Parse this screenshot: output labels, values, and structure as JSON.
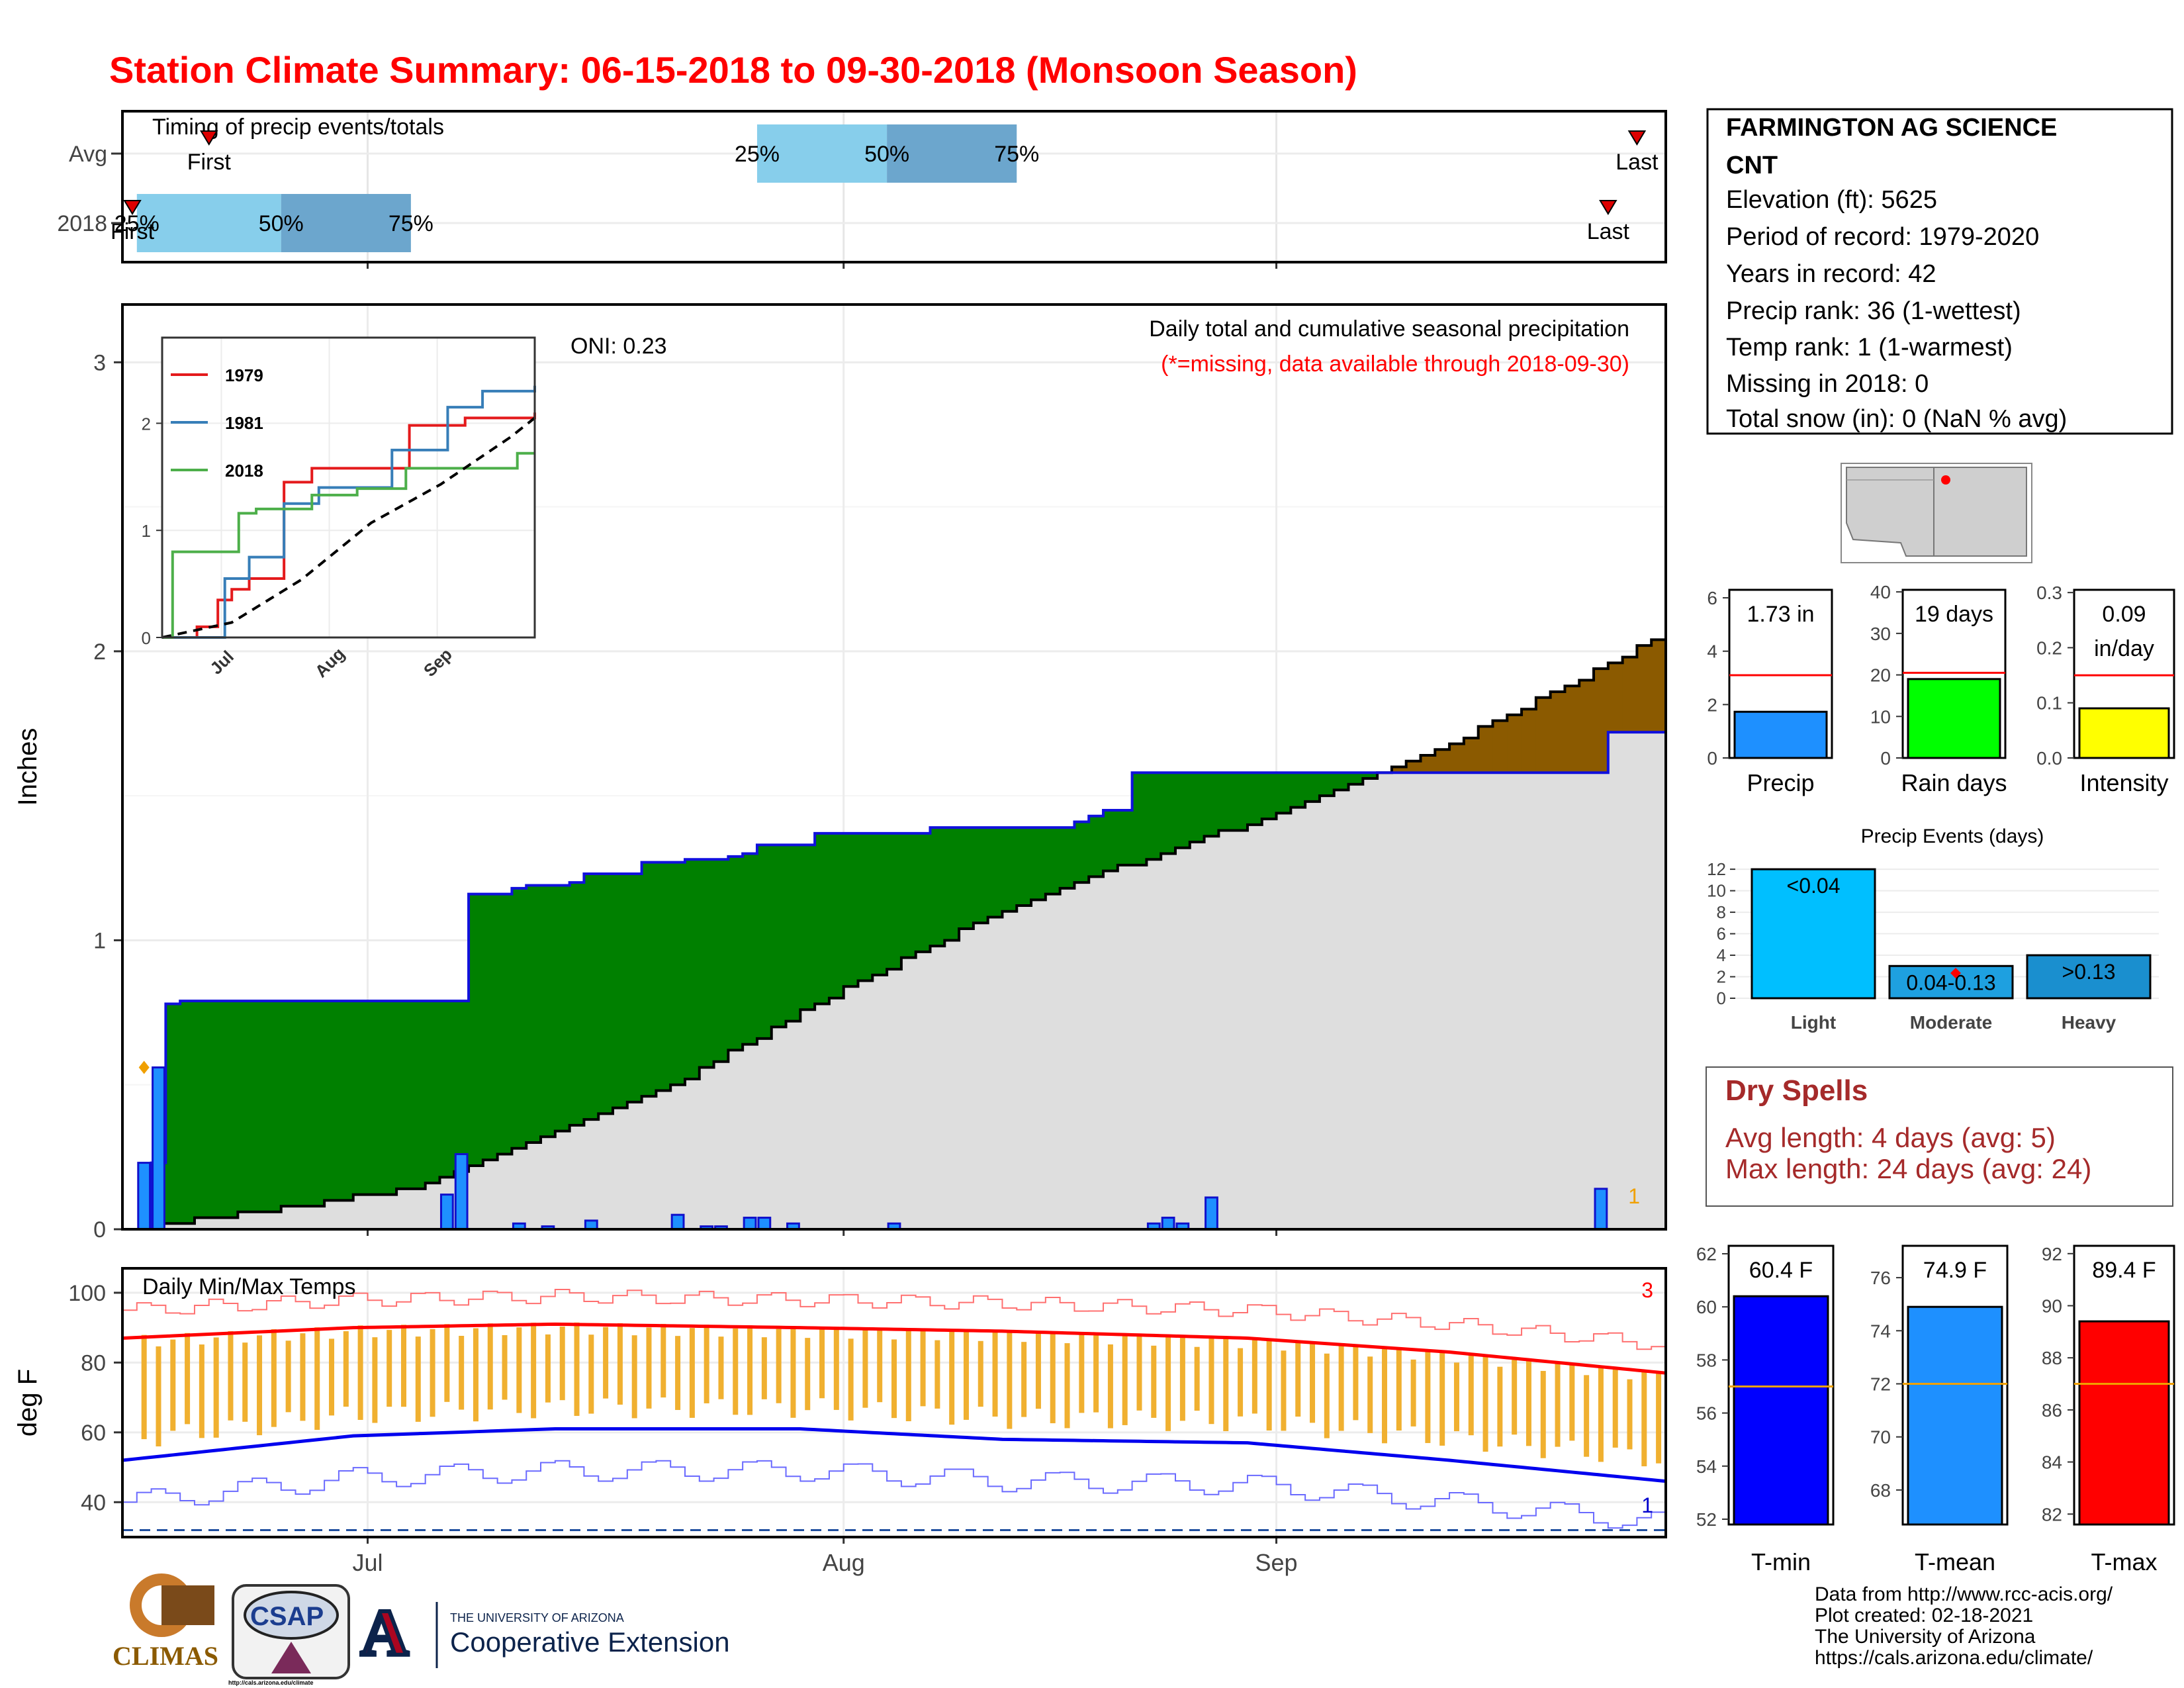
{
  "title": "Station Climate Summary: 06-15-2018 to 09-30-2018 (Monsoon Season)",
  "colors": {
    "title": "#ff0000",
    "deficit": "#008000",
    "surplus": "#8b5a00",
    "bars": "#1e90ff"
  },
  "timing": {
    "title": "Timing of precip events/totals",
    "rows": [
      "Avg",
      "2018"
    ],
    "avg": {
      "p25": "25%",
      "p50": "50%",
      "p75": "75%",
      "first": "First",
      "last": "Last"
    },
    "y2018": {
      "p25": "25%",
      "p50": "50%",
      "p75": "75%",
      "first": "First",
      "last": "Last"
    }
  },
  "station": {
    "name_line1": "FARMINGTON AG SCIENCE",
    "name_line2": "CNT",
    "lines": [
      "Elevation (ft): 5625",
      "Period of record: 1979-2020",
      "Years in record: 42",
      "Precip rank: 36 (1-wettest)",
      "Temp rank: 1 (1-warmest)",
      "Missing in 2018: 0",
      "Total snow (in): 0 (NaN % avg)"
    ]
  },
  "main": {
    "ylabel": "Inches",
    "yticks": [
      "0",
      "1",
      "2",
      "3"
    ],
    "xticks": [
      "Jul",
      "Aug",
      "Sep"
    ],
    "note1": "Daily total and cumulative seasonal precipitation",
    "note2": "(*=missing, data available through 2018-09-30)",
    "oni": "ONI: 0.23",
    "corner_label": "1"
  },
  "inset": {
    "legend": [
      "1979",
      "1981",
      "2018"
    ],
    "yticks": [
      "0",
      "1",
      "2"
    ],
    "xticks": [
      "Jul",
      "Aug",
      "Sep"
    ]
  },
  "temps": {
    "title": "Daily Min/Max Temps",
    "ylabel": "deg F",
    "yticks": [
      "40",
      "60",
      "80",
      "100"
    ],
    "xticks": [
      "Jul",
      "Aug",
      "Sep"
    ],
    "count_top": "3",
    "count_bottom": "1"
  },
  "small_bars": {
    "precip": {
      "label": "Precip",
      "value_label": "1.73 in",
      "yticks": [
        "0",
        "2",
        "4",
        "6"
      ]
    },
    "raindays": {
      "label": "Rain days",
      "value_label": "19 days",
      "yticks": [
        "0",
        "10",
        "20",
        "30",
        "40"
      ]
    },
    "intensity": {
      "label": "Intensity",
      "value_label1": "0.09",
      "value_label2": "in/day",
      "yticks": [
        "0.0",
        "0.1",
        "0.2",
        "0.3"
      ]
    }
  },
  "events": {
    "title": "Precip Events (days)",
    "yticks": [
      "0",
      "2",
      "4",
      "6",
      "8",
      "10",
      "12"
    ],
    "categories": [
      "Light",
      "Moderate",
      "Heavy"
    ],
    "bar_labels": [
      "<0.04",
      "0.04-0.13",
      ">0.13"
    ]
  },
  "dry": {
    "title": "Dry Spells",
    "line1": "Avg length: 4 days (avg: 5)",
    "line2": "Max length: 24 days (avg: 24)"
  },
  "temp_bars": {
    "tmin": {
      "label": "T-min",
      "value_label": "60.4 F",
      "yticks": [
        "52",
        "54",
        "56",
        "58",
        "60",
        "62"
      ]
    },
    "tmean": {
      "label": "T-mean",
      "value_label": "74.9 F",
      "yticks": [
        "68",
        "70",
        "72",
        "74",
        "76"
      ]
    },
    "tmax": {
      "label": "T-max",
      "value_label": "89.4 F",
      "yticks": [
        "82",
        "84",
        "86",
        "88",
        "90",
        "92"
      ]
    }
  },
  "footer": {
    "lines": [
      "Data from http://www.rcc-acis.org/",
      "Plot created: 02-18-2021",
      "The University of Arizona",
      "https://cals.arizona.edu/climate/"
    ],
    "climas": "CLIMAS",
    "csap": "CSAP",
    "csap_url": "http://cals.arizona.edu/climate",
    "ua_line1": "THE UNIVERSITY OF ARIZONA",
    "ua_line2": "Cooperative Extension"
  },
  "chart_data": [
    {
      "type": "bar",
      "title": "Timing of precip events/totals",
      "categories": [
        "Avg",
        "2018"
      ],
      "series": [
        {
          "name": "25%",
          "values": [
            "2018-07-29",
            "2018-06-16"
          ]
        },
        {
          "name": "50%",
          "values": [
            "2018-08-07",
            "2018-06-26"
          ]
        },
        {
          "name": "75%",
          "values": [
            "2018-08-16",
            "2018-07-05"
          ]
        },
        {
          "name": "First",
          "values": [
            "2018-06-21",
            "2018-06-15"
          ]
        },
        {
          "name": "Last",
          "values": [
            "2018-09-28",
            "2018-09-26"
          ]
        }
      ]
    },
    {
      "type": "area",
      "title": "Daily total and cumulative seasonal precipitation",
      "ylabel": "Inches",
      "ylim": [
        0,
        3.2
      ],
      "x_range": [
        "2018-06-15",
        "2018-09-30"
      ],
      "series": [
        {
          "name": "2018",
          "x": [
            "2018-06-15",
            "2018-06-17",
            "2018-06-18",
            "2018-06-19",
            "2018-07-07",
            "2018-07-08",
            "2018-07-09",
            "2018-07-12",
            "2018-07-13",
            "2018-07-16",
            "2018-07-17",
            "2018-07-20",
            "2018-07-21",
            "2018-07-24",
            "2018-07-27",
            "2018-07-28",
            "2018-07-29",
            "2018-07-30",
            "2018-08-02",
            "2018-08-03",
            "2018-08-04",
            "2018-08-10",
            "2018-08-11",
            "2018-08-15",
            "2018-08-16",
            "2018-08-20",
            "2018-08-21",
            "2018-08-22",
            "2018-08-23",
            "2018-08-24",
            "2018-08-25",
            "2018-09-25",
            "2018-09-26",
            "2018-09-30"
          ],
          "values": [
            0.0,
            0.23,
            0.78,
            0.79,
            0.79,
            0.79,
            1.16,
            1.18,
            1.19,
            1.2,
            1.23,
            1.23,
            1.27,
            1.28,
            1.29,
            1.3,
            1.33,
            1.33,
            1.37,
            1.37,
            1.37,
            1.39,
            1.39,
            1.39,
            1.39,
            1.41,
            1.43,
            1.45,
            1.45,
            1.58,
            1.58,
            1.58,
            1.72,
            1.72
          ]
        },
        {
          "name": "Avg",
          "x": [
            "2018-06-15",
            "2018-06-25",
            "2018-07-05",
            "2018-07-15",
            "2018-07-25",
            "2018-08-04",
            "2018-08-14",
            "2018-08-24",
            "2018-09-03",
            "2018-09-13",
            "2018-09-23",
            "2018-09-30"
          ],
          "values": [
            0.0,
            0.06,
            0.14,
            0.33,
            0.54,
            0.82,
            1.07,
            1.26,
            1.43,
            1.62,
            1.87,
            2.05
          ]
        }
      ],
      "daily_bars": {
        "name": "Daily precip",
        "x": [
          "2018-06-16",
          "2018-06-17",
          "2018-07-07",
          "2018-07-08",
          "2018-07-12",
          "2018-07-14",
          "2018-07-17",
          "2018-07-23",
          "2018-07-25",
          "2018-07-26",
          "2018-07-28",
          "2018-07-29",
          "2018-07-31",
          "2018-08-07",
          "2018-08-25",
          "2018-08-26",
          "2018-08-27",
          "2018-08-29",
          "2018-09-25"
        ],
        "values": [
          0.23,
          0.56,
          0.12,
          0.26,
          0.02,
          0.01,
          0.03,
          0.05,
          0.01,
          0.01,
          0.04,
          0.04,
          0.02,
          0.02,
          0.02,
          0.04,
          0.02,
          0.11,
          0.14
        ]
      }
    },
    {
      "type": "line",
      "title": "inset cumulative precip",
      "legend": [
        "1979",
        "1981",
        "2018"
      ],
      "ylim": [
        0,
        2.8
      ],
      "series": [
        {
          "name": "1979",
          "x": [
            "2018-06-15",
            "2018-06-25",
            "2018-07-01",
            "2018-07-05",
            "2018-07-10",
            "2018-07-20",
            "2018-07-28",
            "2018-08-25",
            "2018-09-10",
            "2018-09-30"
          ],
          "values": [
            0.0,
            0.1,
            0.35,
            0.45,
            0.55,
            1.45,
            1.58,
            1.98,
            2.05,
            2.1
          ]
        },
        {
          "name": "1981",
          "x": [
            "2018-06-15",
            "2018-07-01",
            "2018-07-03",
            "2018-07-10",
            "2018-07-20",
            "2018-07-30",
            "2018-08-20",
            "2018-09-05",
            "2018-09-15",
            "2018-09-30"
          ],
          "values": [
            0.0,
            0.0,
            0.55,
            0.75,
            1.25,
            1.4,
            1.75,
            2.15,
            2.3,
            2.35
          ]
        },
        {
          "name": "2018",
          "x": [
            "2018-06-15",
            "2018-06-18",
            "2018-07-07",
            "2018-07-12",
            "2018-07-28",
            "2018-08-10",
            "2018-08-24",
            "2018-09-25",
            "2018-09-30"
          ],
          "values": [
            0.0,
            0.8,
            1.16,
            1.2,
            1.33,
            1.39,
            1.58,
            1.72,
            1.72
          ]
        },
        {
          "name": "Avg",
          "x": [
            "2018-06-15",
            "2018-07-05",
            "2018-07-25",
            "2018-08-14",
            "2018-09-03",
            "2018-09-23",
            "2018-09-30"
          ],
          "values": [
            0.0,
            0.14,
            0.54,
            1.07,
            1.43,
            1.87,
            2.05
          ]
        }
      ]
    },
    {
      "type": "bar",
      "title": "Daily Min/Max Temps",
      "ylabel": "deg F",
      "ylim": [
        30,
        107
      ],
      "series": [
        {
          "name": "Tmax_avg",
          "x": [
            "2018-06-15",
            "2018-07-01",
            "2018-07-15",
            "2018-08-01",
            "2018-08-15",
            "2018-09-01",
            "2018-09-15",
            "2018-09-30"
          ],
          "values": [
            87,
            90,
            91,
            90,
            89,
            87,
            83,
            77
          ]
        },
        {
          "name": "Tmin_avg",
          "x": [
            "2018-06-15",
            "2018-07-01",
            "2018-07-15",
            "2018-08-01",
            "2018-08-15",
            "2018-09-01",
            "2018-09-15",
            "2018-09-30"
          ],
          "values": [
            52,
            59,
            61,
            61,
            58,
            57,
            52,
            46
          ]
        }
      ]
    },
    {
      "type": "bar",
      "categories": [
        "Precip",
        "Rain days",
        "Intensity"
      ],
      "series": [
        {
          "name": "2018",
          "values": [
            1.73,
            19,
            0.09
          ]
        },
        {
          "name": "Avg",
          "values": [
            3.1,
            20.5,
            0.15
          ]
        }
      ]
    },
    {
      "type": "bar",
      "title": "Precip Events (days)",
      "categories": [
        "Light",
        "Moderate",
        "Heavy"
      ],
      "values": [
        12,
        3,
        4
      ]
    },
    {
      "type": "bar",
      "categories": [
        "T-min",
        "T-mean",
        "T-max"
      ],
      "series": [
        {
          "name": "2018",
          "values": [
            60.4,
            74.9,
            89.4
          ]
        },
        {
          "name": "Avg",
          "values": [
            57.0,
            72.0,
            87.0
          ]
        }
      ]
    }
  ]
}
